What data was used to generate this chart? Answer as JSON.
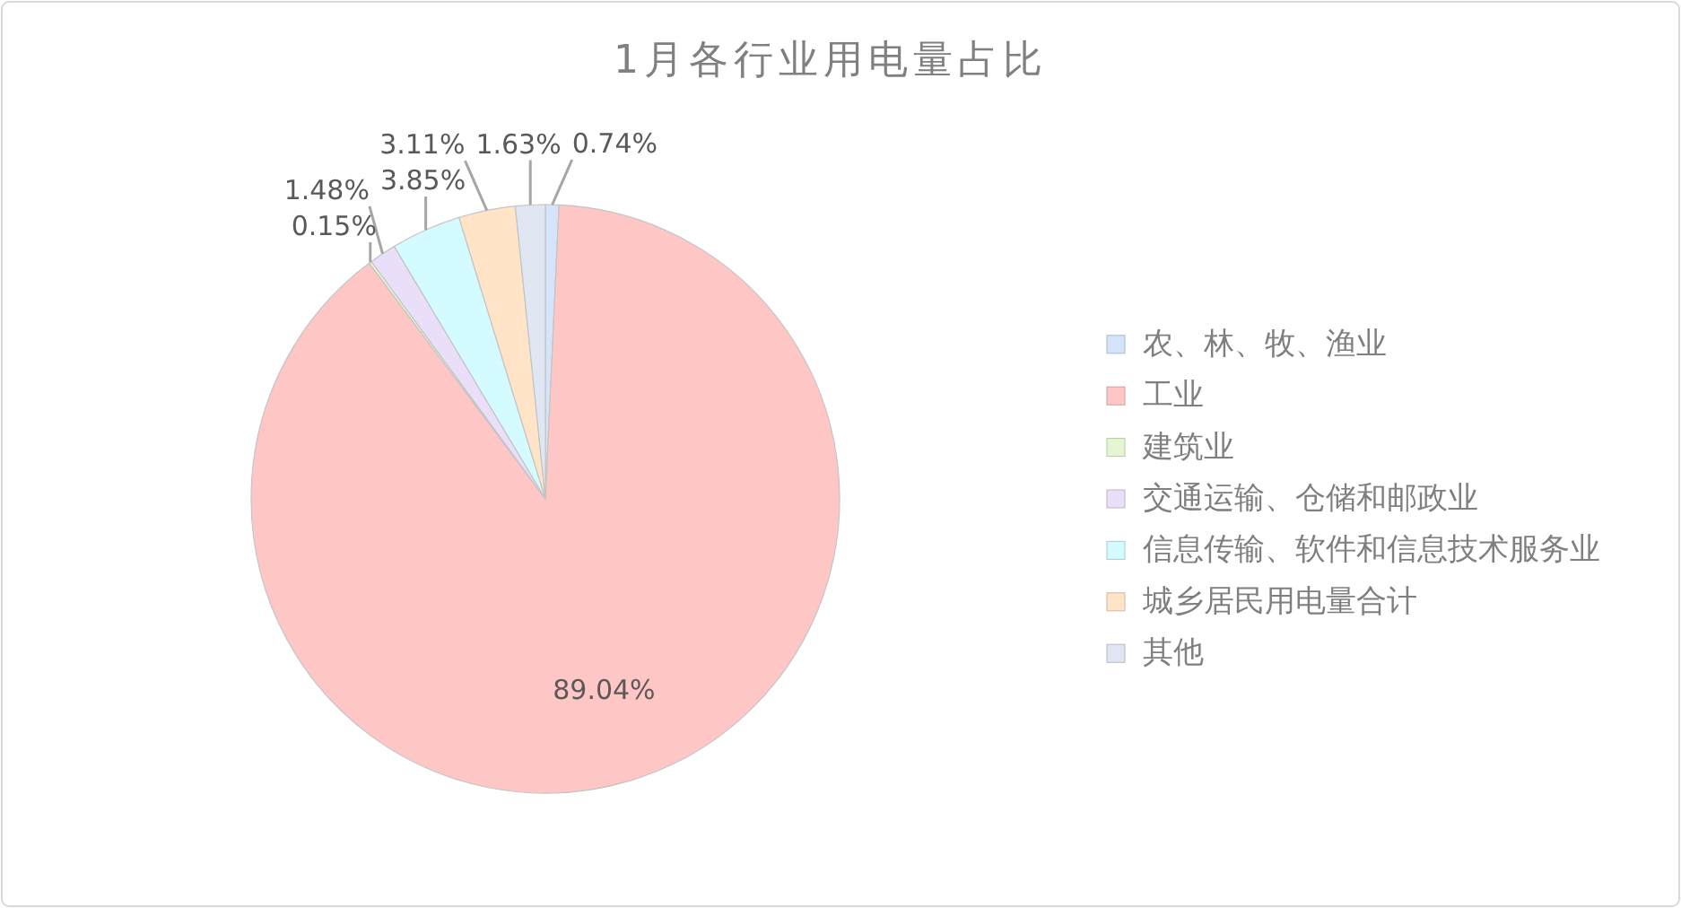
{
  "chart_data": {
    "type": "pie",
    "title": "1月各行业用电量占比",
    "categories": [
      "农、林、牧、渔业",
      "工业",
      "建筑业",
      "交通运输、仓储和邮政业",
      "信息传输、软件和信息技术服务业",
      "城乡居民用电量合计",
      "其他"
    ],
    "values": [
      0.74,
      89.04,
      0.15,
      1.48,
      3.85,
      3.11,
      1.63
    ],
    "value_labels": [
      "0.74%",
      "89.04%",
      "0.15%",
      "1.48%",
      "3.85%",
      "3.11%",
      "1.63%"
    ],
    "colors": [
      "#d6e4fb",
      "#ffc6c6",
      "#e4f7d2",
      "#e9dff8",
      "#d4fbff",
      "#ffe4c8",
      "#e0e7f3"
    ],
    "legend": "right"
  }
}
